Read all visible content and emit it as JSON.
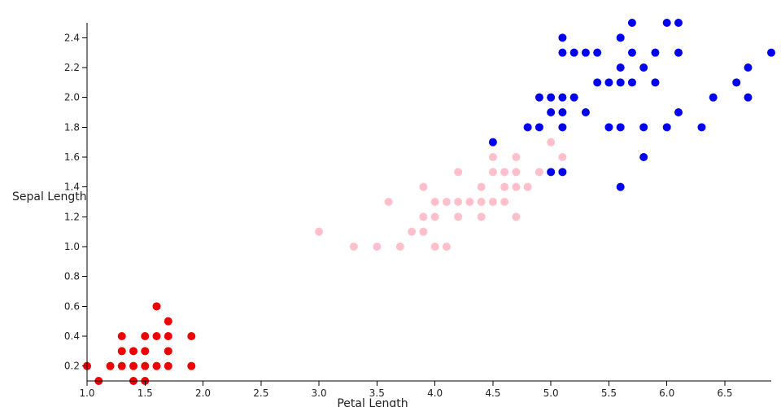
{
  "chart_data": {
    "type": "scatter",
    "title": "",
    "xlabel": "Petal Length",
    "ylabel": "Sepal Length",
    "xlim": [
      1.0,
      6.9
    ],
    "ylim": [
      0.1,
      2.5
    ],
    "x_ticks": [
      "1.0",
      "1.5",
      "2.0",
      "2.5",
      "3.0",
      "3.5",
      "4.0",
      "4.5",
      "5.0",
      "5.5",
      "6.0",
      "6.5"
    ],
    "y_ticks": [
      "0.2",
      "0.4",
      "0.6",
      "0.8",
      "1.0",
      "1.2",
      "1.4",
      "1.6",
      "1.8",
      "2.0",
      "2.2",
      "2.4"
    ],
    "grid": false,
    "legend": "none",
    "series": [
      {
        "color": "#ee0000",
        "points": [
          [
            1.0,
            0.2
          ],
          [
            1.1,
            0.1
          ],
          [
            1.2,
            0.2
          ],
          [
            1.3,
            0.2
          ],
          [
            1.3,
            0.3
          ],
          [
            1.3,
            0.4
          ],
          [
            1.4,
            0.1
          ],
          [
            1.4,
            0.2
          ],
          [
            1.4,
            0.3
          ],
          [
            1.5,
            0.1
          ],
          [
            1.5,
            0.2
          ],
          [
            1.5,
            0.3
          ],
          [
            1.5,
            0.4
          ],
          [
            1.6,
            0.2
          ],
          [
            1.6,
            0.4
          ],
          [
            1.6,
            0.6
          ],
          [
            1.7,
            0.2
          ],
          [
            1.7,
            0.3
          ],
          [
            1.7,
            0.4
          ],
          [
            1.7,
            0.5
          ],
          [
            1.9,
            0.2
          ],
          [
            1.9,
            0.4
          ]
        ]
      },
      {
        "color": "#ffc0cb",
        "points": [
          [
            3.0,
            1.1
          ],
          [
            3.3,
            1.0
          ],
          [
            3.5,
            1.0
          ],
          [
            3.6,
            1.3
          ],
          [
            3.7,
            1.0
          ],
          [
            3.8,
            1.1
          ],
          [
            3.9,
            1.1
          ],
          [
            3.9,
            1.2
          ],
          [
            3.9,
            1.4
          ],
          [
            4.0,
            1.0
          ],
          [
            4.0,
            1.2
          ],
          [
            4.0,
            1.3
          ],
          [
            4.1,
            1.0
          ],
          [
            4.1,
            1.3
          ],
          [
            4.2,
            1.2
          ],
          [
            4.2,
            1.3
          ],
          [
            4.2,
            1.5
          ],
          [
            4.3,
            1.3
          ],
          [
            4.4,
            1.2
          ],
          [
            4.4,
            1.3
          ],
          [
            4.4,
            1.4
          ],
          [
            4.5,
            1.3
          ],
          [
            4.5,
            1.5
          ],
          [
            4.5,
            1.6
          ],
          [
            4.6,
            1.3
          ],
          [
            4.6,
            1.4
          ],
          [
            4.6,
            1.5
          ],
          [
            4.7,
            1.2
          ],
          [
            4.7,
            1.4
          ],
          [
            4.7,
            1.5
          ],
          [
            4.7,
            1.6
          ],
          [
            4.8,
            1.4
          ],
          [
            4.8,
            1.8
          ],
          [
            4.9,
            1.5
          ],
          [
            5.0,
            1.7
          ],
          [
            5.1,
            1.6
          ]
        ]
      },
      {
        "color": "#0000ee",
        "points": [
          [
            4.5,
            1.7
          ],
          [
            4.8,
            1.8
          ],
          [
            4.9,
            1.8
          ],
          [
            4.9,
            2.0
          ],
          [
            5.0,
            1.5
          ],
          [
            5.0,
            1.9
          ],
          [
            5.0,
            2.0
          ],
          [
            5.1,
            1.5
          ],
          [
            5.1,
            1.8
          ],
          [
            5.1,
            1.9
          ],
          [
            5.1,
            2.0
          ],
          [
            5.1,
            2.3
          ],
          [
            5.1,
            2.4
          ],
          [
            5.2,
            2.0
          ],
          [
            5.2,
            2.3
          ],
          [
            5.3,
            1.9
          ],
          [
            5.3,
            2.3
          ],
          [
            5.4,
            2.1
          ],
          [
            5.4,
            2.3
          ],
          [
            5.5,
            1.8
          ],
          [
            5.5,
            2.1
          ],
          [
            5.6,
            1.4
          ],
          [
            5.6,
            1.8
          ],
          [
            5.6,
            2.1
          ],
          [
            5.6,
            2.2
          ],
          [
            5.6,
            2.4
          ],
          [
            5.7,
            2.1
          ],
          [
            5.7,
            2.3
          ],
          [
            5.7,
            2.5
          ],
          [
            5.8,
            1.6
          ],
          [
            5.8,
            1.8
          ],
          [
            5.8,
            2.2
          ],
          [
            5.9,
            2.1
          ],
          [
            5.9,
            2.3
          ],
          [
            6.0,
            1.8
          ],
          [
            6.0,
            2.5
          ],
          [
            6.1,
            1.9
          ],
          [
            6.1,
            2.3
          ],
          [
            6.1,
            2.5
          ],
          [
            6.3,
            1.8
          ],
          [
            6.4,
            2.0
          ],
          [
            6.6,
            2.1
          ],
          [
            6.7,
            2.0
          ],
          [
            6.7,
            2.2
          ],
          [
            6.9,
            2.3
          ]
        ]
      }
    ]
  }
}
